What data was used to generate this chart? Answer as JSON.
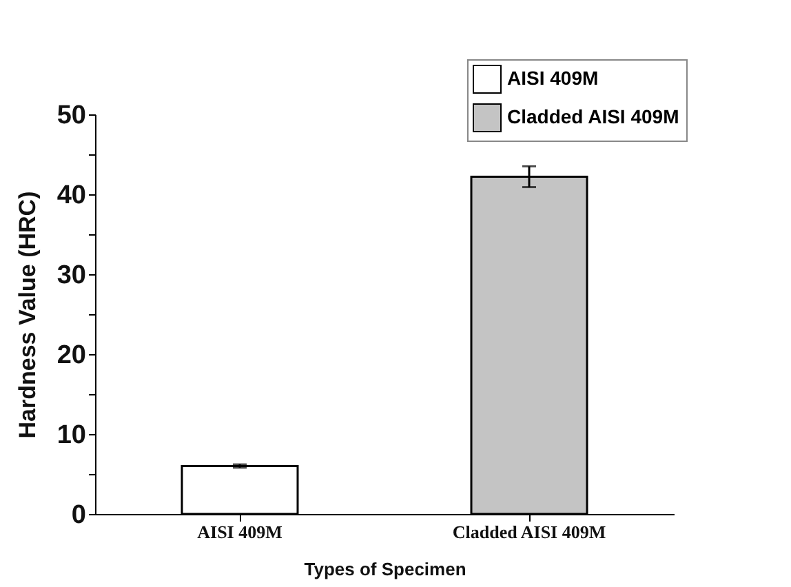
{
  "chart_data": {
    "type": "bar",
    "xlabel": "Types of Specimen",
    "ylabel": "Hardness Value (HRC)",
    "categories": [
      "AISI 409M",
      "Cladded AISI 409M"
    ],
    "series": [
      {
        "name": "AISI 409M",
        "color": "#ffffff",
        "values": [
          6.0,
          null
        ],
        "errors": [
          0.2,
          null
        ]
      },
      {
        "name": "Cladded AISI 409M",
        "color": "#c4c4c4",
        "values": [
          null,
          42.2
        ],
        "errors": [
          null,
          1.3
        ]
      }
    ],
    "ylim": [
      0,
      50
    ],
    "yticks": [
      0,
      {
        "value": 5,
        "label": null
      },
      10,
      {
        "value": 15,
        "label": null
      },
      20,
      {
        "value": 25,
        "label": null
      },
      30,
      {
        "value": 35,
        "label": null
      },
      40,
      {
        "value": 45,
        "label": null
      },
      50
    ],
    "legend": "top right",
    "grid": false
  }
}
